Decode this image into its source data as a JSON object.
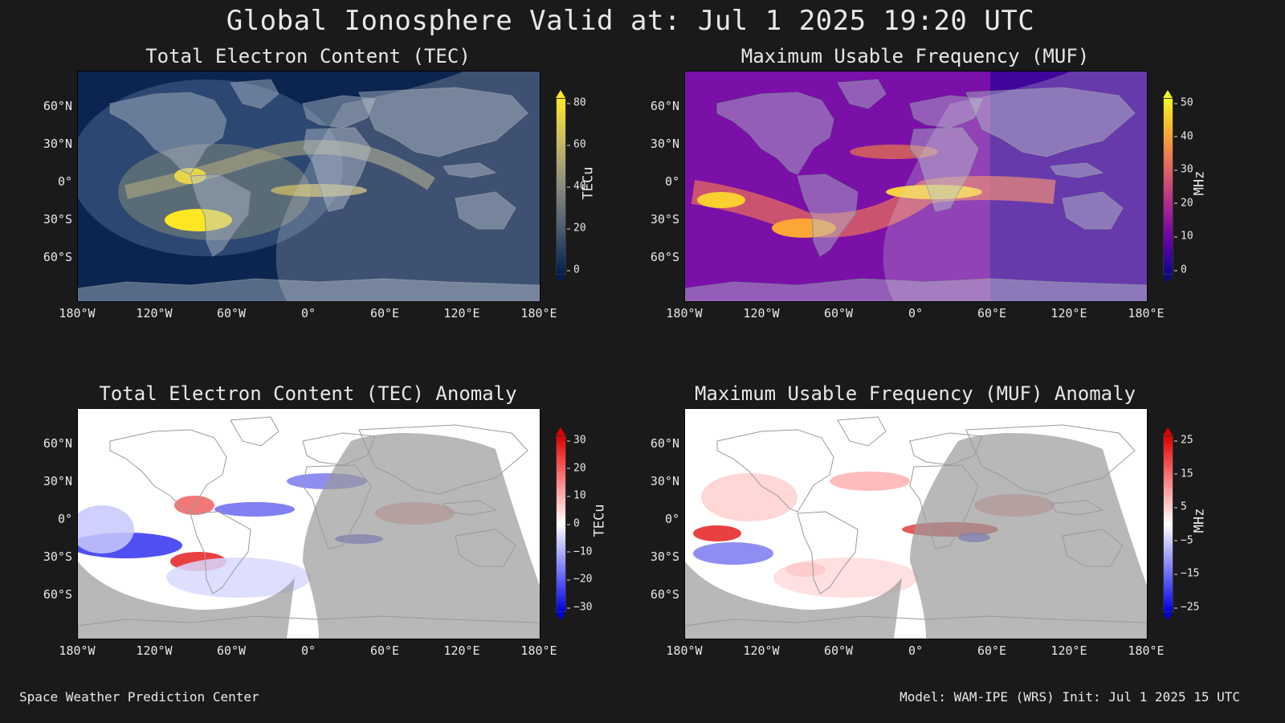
{
  "main_title": "Global Ionosphere Valid at: Jul 1 2025 19:20 UTC",
  "panels": [
    {
      "id": "tec",
      "title": "Total Electron Content (TEC)",
      "colormap": "cividis",
      "colorbar": {
        "unit": "TECu",
        "ticks": [
          "80",
          "60",
          "40",
          "20",
          "0"
        ],
        "stops": [
          "#fde725",
          "#c8b866",
          "#8a8a80",
          "#4a5a70",
          "#00204c"
        ]
      },
      "night_shade": "#d7d7d7"
    },
    {
      "id": "muf",
      "title": "Maximum Usable Frequency (MUF)",
      "colormap": "plasma",
      "colorbar": {
        "unit": "MHz",
        "ticks": [
          "50",
          "40",
          "30",
          "20",
          "10",
          "0"
        ],
        "stops": [
          "#f0f921",
          "#fca636",
          "#e16462",
          "#b12a90",
          "#6a00a8",
          "#0d0887"
        ]
      },
      "night_shade": "#d7d7d7"
    },
    {
      "id": "tec-anomaly",
      "title": "Total Electron Content (TEC) Anomaly",
      "colormap": "bwr",
      "colorbar": {
        "unit": "TECu",
        "ticks": [
          "30",
          "20",
          "10",
          "0",
          "−10",
          "−20",
          "−30"
        ],
        "stops": [
          "#e00000",
          "#ff8080",
          "#ffffff",
          "#8080ff",
          "#0000e0"
        ]
      },
      "night_shade": "#9a9a9a"
    },
    {
      "id": "muf-anomaly",
      "title": "Maximum Usable Frequency (MUF) Anomaly",
      "colormap": "bwr",
      "colorbar": {
        "unit": "MHz",
        "ticks": [
          "25",
          "15",
          "5",
          "−5",
          "−15",
          "−25"
        ],
        "stops": [
          "#e00000",
          "#ff8080",
          "#ffffff",
          "#8080ff",
          "#0000e0"
        ]
      },
      "night_shade": "#9a9a9a"
    }
  ],
  "lat_labels": [
    "60°N",
    "30°N",
    "0°",
    "30°S",
    "60°S"
  ],
  "lon_labels": [
    "180°W",
    "120°W",
    "60°W",
    "0°",
    "60°E",
    "120°E",
    "180°E"
  ],
  "footer": {
    "left": "Space Weather Prediction Center",
    "right": "Model: WAM-IPE (WRS) Init: Jul 1 2025 15 UTC"
  }
}
